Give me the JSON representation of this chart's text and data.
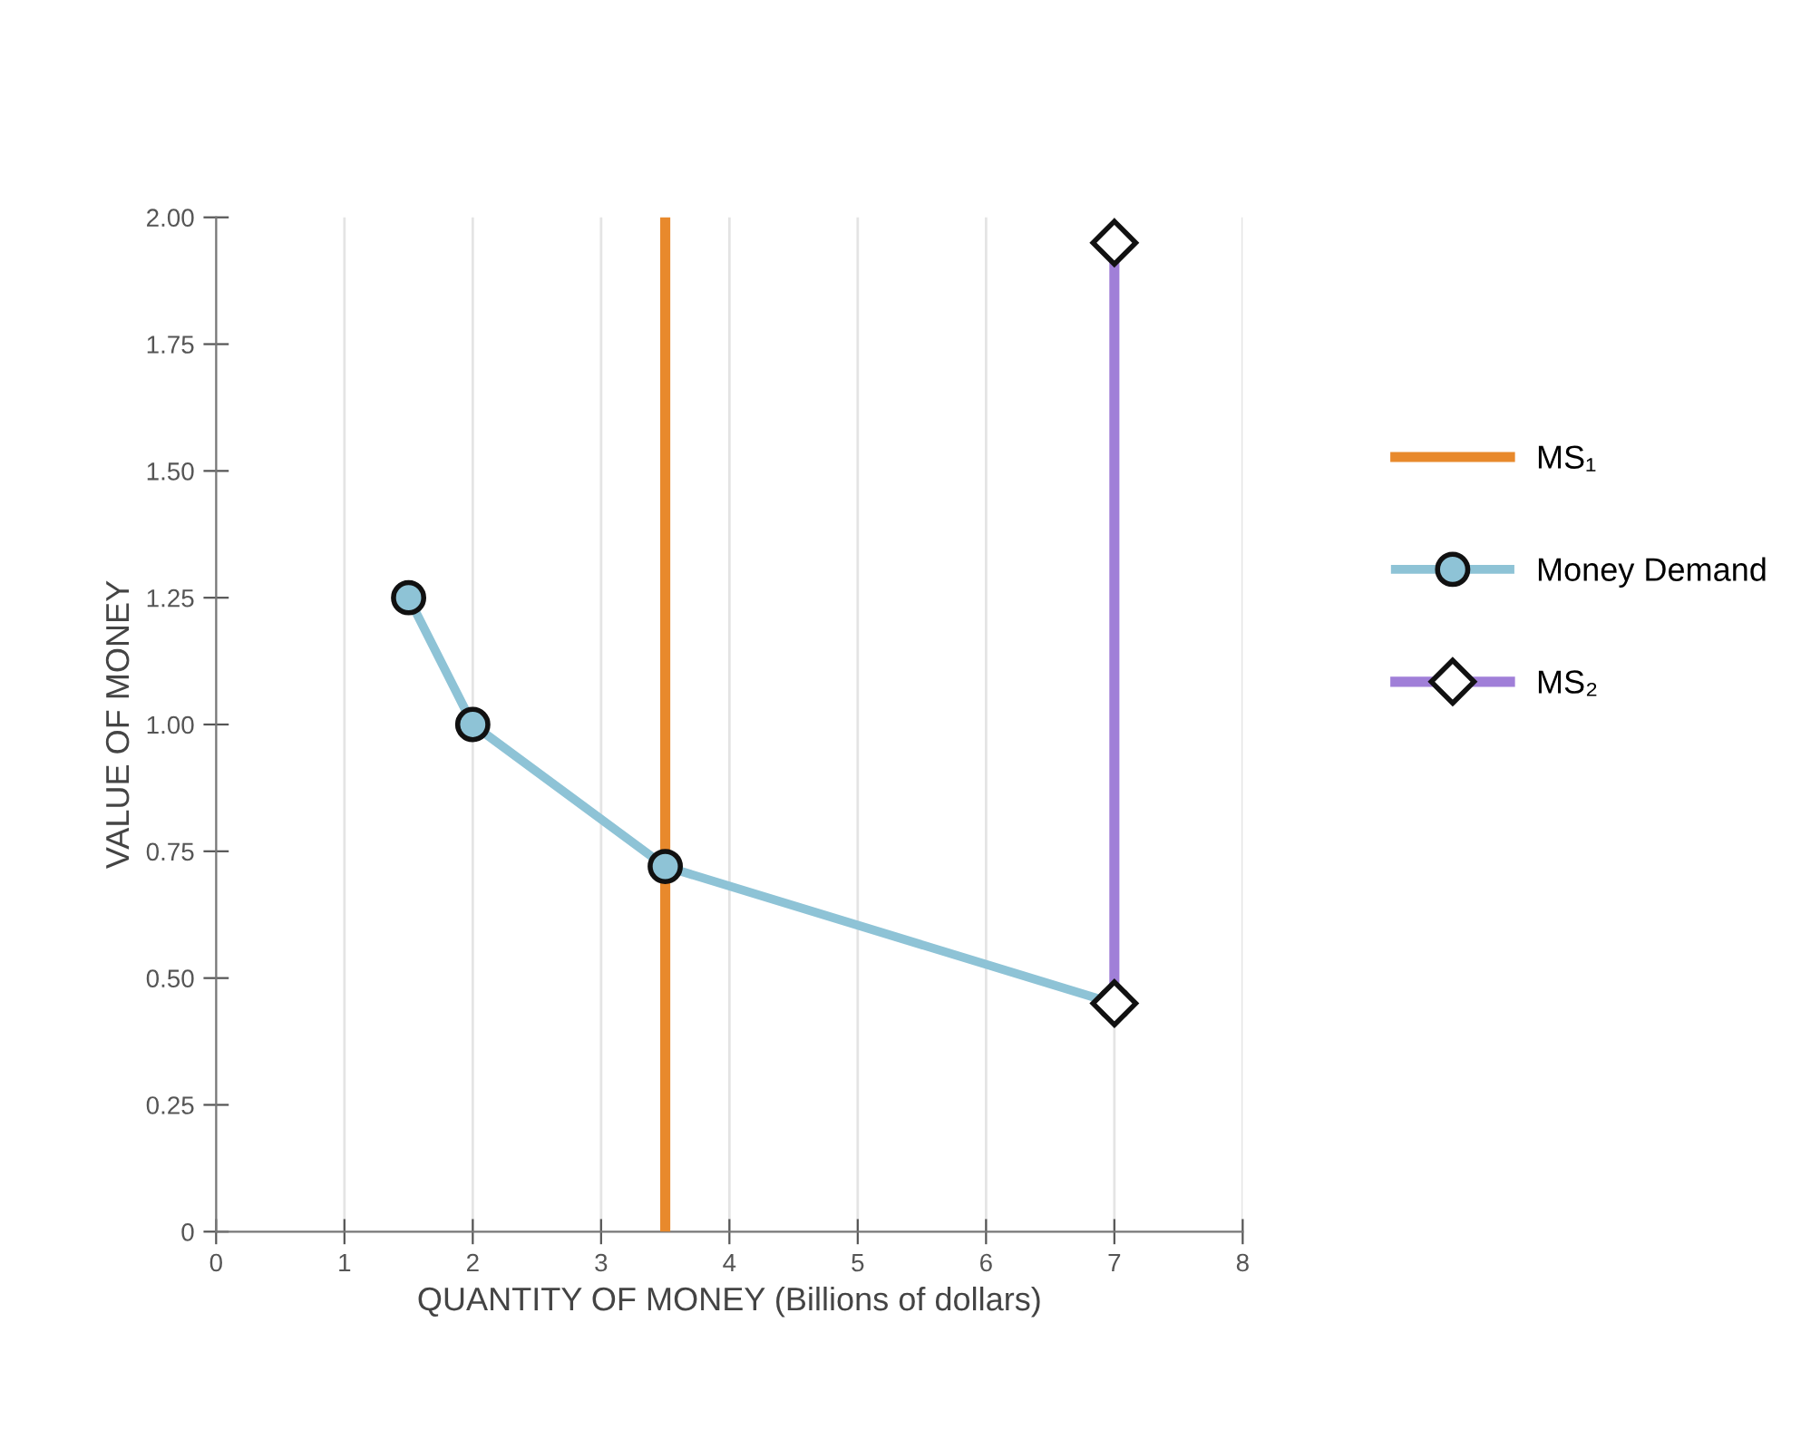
{
  "chart_data": {
    "type": "line",
    "xlabel": "QUANTITY OF MONEY (Billions of dollars)",
    "ylabel": "VALUE OF MONEY",
    "xlim": [
      0,
      8
    ],
    "xticks": [
      0,
      1,
      2,
      3,
      4,
      5,
      6,
      7,
      8
    ],
    "ylim": [
      0,
      2
    ],
    "yticks": [
      {
        "value": 0,
        "label": "0"
      },
      {
        "value": 0.25,
        "label": "0.25"
      },
      {
        "value": 0.5,
        "label": "0.50"
      },
      {
        "value": 0.75,
        "label": "0.75"
      },
      {
        "value": 1,
        "label": "1.00"
      },
      {
        "value": 1.25,
        "label": "1.25"
      },
      {
        "value": 1.5,
        "label": "1.50"
      },
      {
        "value": 1.75,
        "label": "1.75"
      },
      {
        "value": 2,
        "label": "2.00"
      }
    ],
    "grid": "x",
    "legend": "right",
    "series": [
      {
        "name": "MS₁",
        "color": "#e8892c",
        "x": [
          3.5,
          3.5
        ],
        "values": [
          0,
          2
        ],
        "marker": "none"
      },
      {
        "name": "Money Demand",
        "color": "#8ec3d6",
        "x": [
          1.5,
          2,
          3.5,
          7
        ],
        "values": [
          1.25,
          1,
          0.72,
          0.45
        ],
        "marker": "circle"
      },
      {
        "name": "MS₂",
        "color": "#a07fd8",
        "x": [
          7,
          7
        ],
        "values": [
          0.45,
          1.95
        ],
        "marker": "diamond"
      }
    ]
  }
}
